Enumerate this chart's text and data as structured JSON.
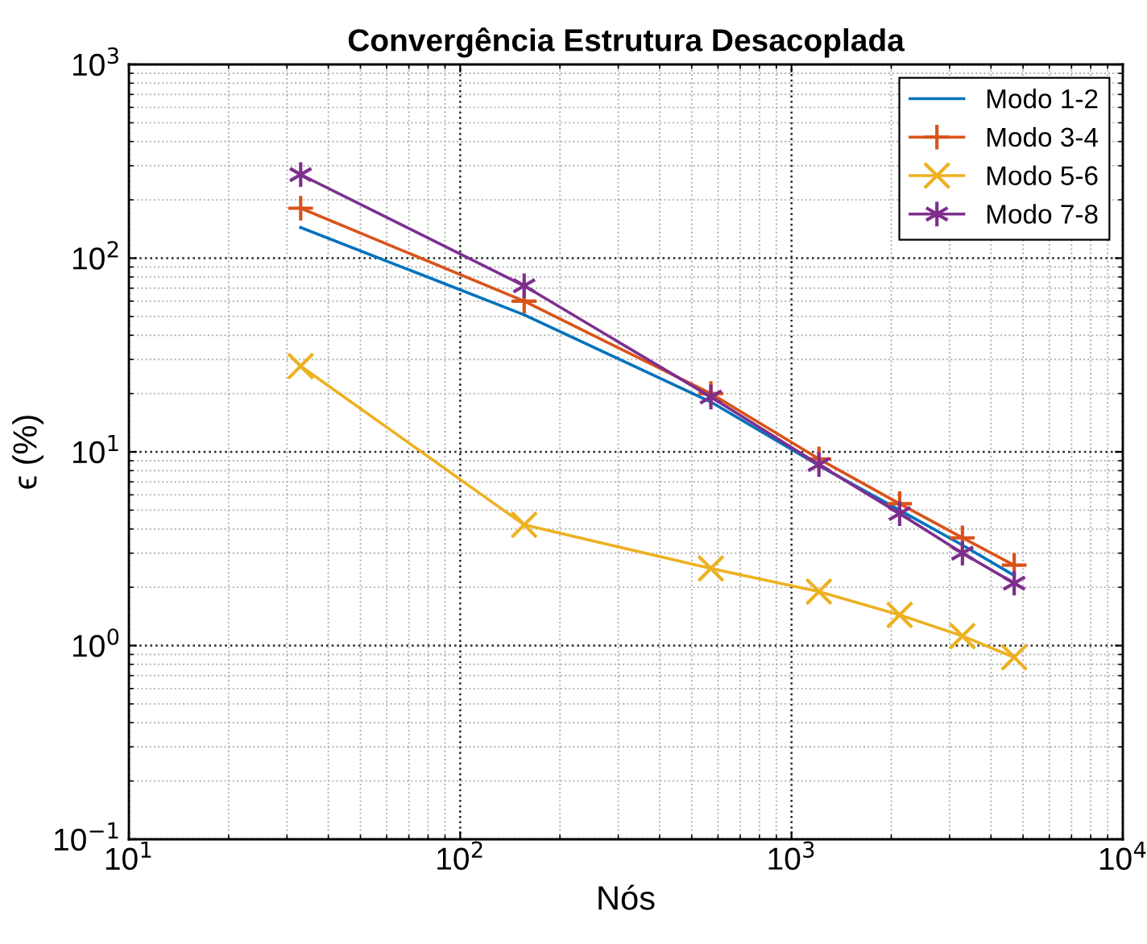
{
  "chart_data": {
    "type": "line",
    "title": "Convergência Estrutura Desacoplada",
    "xlabel": "Nós",
    "ylabel": "ϵ (%)",
    "log": "xy",
    "grid": true,
    "legend": "top right",
    "xlim": [
      10,
      10000
    ],
    "xticks": [
      {
        "value": 10,
        "label": "10$^{1}$"
      },
      {
        "value": 100,
        "label": "10$^{2}$"
      },
      {
        "value": 1000,
        "label": "10$^{3}$"
      },
      {
        "value": 10000,
        "label": "10$^{4}$"
      }
    ],
    "ylim": [
      0.1,
      1000
    ],
    "yticks": [
      {
        "value": 0.1,
        "label": "10$^{−1}$"
      },
      {
        "value": 1,
        "label": "10$^{0}$"
      },
      {
        "value": 10,
        "label": "10$^{1}$"
      },
      {
        "value": 100,
        "label": "10$^{2}$"
      },
      {
        "value": 1000,
        "label": "10$^{3}$"
      }
    ],
    "x": [
      33,
      156,
      571,
      1210,
      2120,
      3280,
      4700
    ],
    "series": [
      {
        "name": "Modo 1-2",
        "color": "#0072bd",
        "marker": "none",
        "values": [
          144,
          51,
          18.1,
          8.5,
          5.0,
          3.3,
          2.3
        ]
      },
      {
        "name": "Modo 3-4",
        "color": "#d95319",
        "marker": "plus",
        "values": [
          181,
          60,
          20,
          9.2,
          5.4,
          3.6,
          2.6
        ]
      },
      {
        "name": "Modo 5-6",
        "color": "#edb120",
        "marker": "x",
        "values": [
          27.7,
          4.2,
          2.5,
          1.9,
          1.44,
          1.12,
          0.87
        ]
      },
      {
        "name": "Modo 7-8",
        "color": "#7e2f8e",
        "marker": "cross",
        "values": [
          270,
          72,
          19.2,
          8.6,
          4.8,
          3.0,
          2.1
        ]
      }
    ]
  }
}
